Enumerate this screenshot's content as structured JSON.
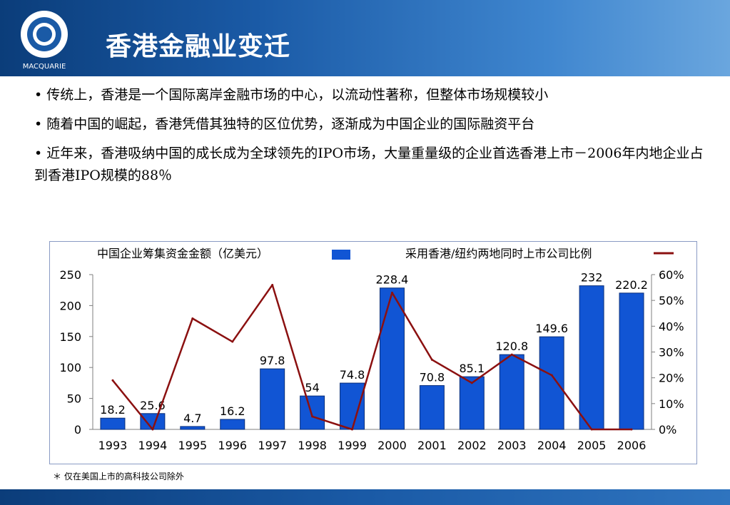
{
  "header": {
    "title": "香港金融业变迁",
    "logo_text": "MACQUARIE"
  },
  "bullets": [
    "• 传统上，香港是一个国际离岸金融市场的中心，以流动性著称，但整体市场规模较小",
    "• 随着中国的崛起，香港凭借其独特的区位优势，逐渐成为中国企业的国际融资平台",
    "• 近年来，香港吸纳中国的成长成为全球领先的IPO市场，大量重量级的企业首选香港上市－2006年内地企业占到香港IPO规模的88％"
  ],
  "footnote": "＊ 仅在美国上市的高科技公司除外",
  "chart_data": {
    "type": "bar",
    "categories": [
      "1993",
      "1994",
      "1995",
      "1996",
      "1997",
      "1998",
      "1999",
      "2000",
      "2001",
      "2002",
      "2003",
      "2004",
      "2005",
      "2006"
    ],
    "series": [
      {
        "name": "中国企业筹集资金金额（亿美元）",
        "type": "bar",
        "color": "#1155d4",
        "axis": "left",
        "values": [
          18.2,
          25.6,
          4.7,
          16.2,
          97.8,
          54,
          74.8,
          228.4,
          70.8,
          85.1,
          120.8,
          149.6,
          232,
          220.2
        ],
        "labels": [
          "18.2",
          "25.6",
          "4.7",
          "16.2",
          "97.8",
          "54",
          "74.8",
          "228.4",
          "70.8",
          "85.1",
          "120.8",
          "149.6",
          "232",
          "220.2"
        ]
      },
      {
        "name": "采用香港/纽约两地同时上市公司比例",
        "type": "line",
        "color": "#8b1010",
        "axis": "right",
        "values": [
          0.19,
          0.0,
          0.43,
          0.34,
          0.56,
          0.05,
          0.0,
          0.53,
          0.27,
          0.18,
          0.29,
          0.21,
          0.0,
          0.0
        ]
      }
    ],
    "ylim_left": [
      0,
      250
    ],
    "yticks_left": [
      "0",
      "50",
      "100",
      "150",
      "200",
      "250"
    ],
    "ylim_right": [
      0,
      0.6
    ],
    "yticks_right": [
      "0%",
      "10%",
      "20%",
      "30%",
      "40%",
      "50%",
      "60%"
    ],
    "grid": false,
    "legend": "top"
  }
}
